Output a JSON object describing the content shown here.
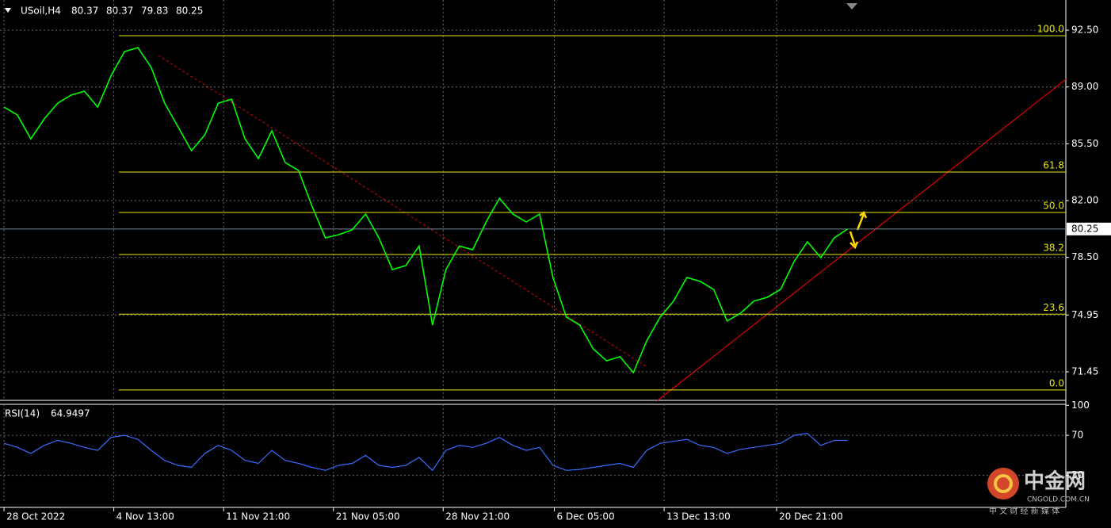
{
  "chart_data": {
    "type": "line",
    "symbol": "USoil,H4",
    "ohlc": [
      80.37,
      80.37,
      79.83,
      80.25
    ],
    "series": [
      {
        "name": "USoil",
        "color": "#00ff00",
        "values": [
          87.76,
          87.27,
          85.8,
          87.03,
          88.0,
          88.5,
          88.74,
          87.76,
          89.7,
          91.18,
          91.43,
          90.2,
          88.0,
          86.54,
          85.08,
          86.05,
          88.0,
          88.25,
          85.8,
          84.59,
          86.3,
          84.34,
          83.85,
          81.66,
          79.7,
          79.9,
          80.2,
          81.17,
          79.7,
          77.75,
          77.99,
          79.2,
          74.33,
          77.75,
          79.2,
          78.97,
          80.68,
          82.14,
          81.17,
          80.68,
          81.17,
          77.26,
          74.82,
          74.33,
          72.87,
          72.13,
          72.38,
          71.4,
          73.35,
          74.82,
          75.8,
          77.26,
          77.02,
          76.53,
          74.58,
          75.06,
          75.8,
          76.04,
          76.53,
          78.24,
          79.46,
          78.48,
          79.7,
          80.25
        ]
      }
    ],
    "last_price": 80.25,
    "xlim": [
      -0.3,
      79.3
    ],
    "xticks": [
      {
        "value": 0,
        "label": "28 Oct 2022"
      },
      {
        "value": 8.2,
        "label": "4 Nov 13:00"
      },
      {
        "value": 16.4,
        "label": "11 Nov 21:00"
      },
      {
        "value": 24.6,
        "label": "21 Nov 05:00"
      },
      {
        "value": 32.8,
        "label": "28 Nov 21:00"
      },
      {
        "value": 41.1,
        "label": "6 Dec 05:00"
      },
      {
        "value": 49.3,
        "label": "13 Dec 13:00"
      },
      {
        "value": 57.7,
        "label": "20 Dec 21:00"
      }
    ],
    "ylim": [
      69.69,
      94.36
    ],
    "yticks": [
      {
        "value": 92.5,
        "label": "92.50"
      },
      {
        "value": 89,
        "label": "89.00"
      },
      {
        "value": 85.5,
        "label": "85.50"
      },
      {
        "value": 82,
        "label": "82.00"
      },
      {
        "value": 78.5,
        "label": "78.50"
      },
      74.95,
      71.45
    ],
    "grid": true,
    "fib_levels": [
      {
        "label": "100.0",
        "value": 92.16
      },
      {
        "label": "61.8",
        "value": 83.76
      },
      {
        "label": "50.0",
        "value": 81.27
      },
      {
        "label": "38.2",
        "value": 78.68
      },
      {
        "label": "23.6",
        "value": 75.0
      },
      {
        "label": "0.0",
        "value": 70.33
      }
    ],
    "fib_color": "#e8e800",
    "rsi": {
      "name": "RSI(14)",
      "color": "#3a6cff",
      "ylim": [
        2,
        101
      ],
      "yticks": [
        100,
        70,
        30
      ],
      "values": [
        62,
        58,
        52,
        60,
        65,
        62,
        58,
        55,
        68,
        70,
        66,
        55,
        45,
        40,
        38,
        52,
        60,
        55,
        45,
        42,
        55,
        45,
        42,
        38,
        35,
        40,
        42,
        50,
        40,
        38,
        40,
        48,
        35,
        55,
        60,
        58,
        62,
        68,
        60,
        55,
        58,
        40,
        35,
        36,
        38,
        40,
        42,
        38,
        55,
        62,
        64,
        66,
        60,
        58,
        52,
        56,
        58,
        60,
        62,
        70,
        72,
        60,
        65,
        64.9497
      ]
    }
  },
  "watermark": {
    "brand": "中金网",
    "site": "CNGOLD.COM.CN",
    "tagline": "中 文 财 经 新 媒 体"
  }
}
